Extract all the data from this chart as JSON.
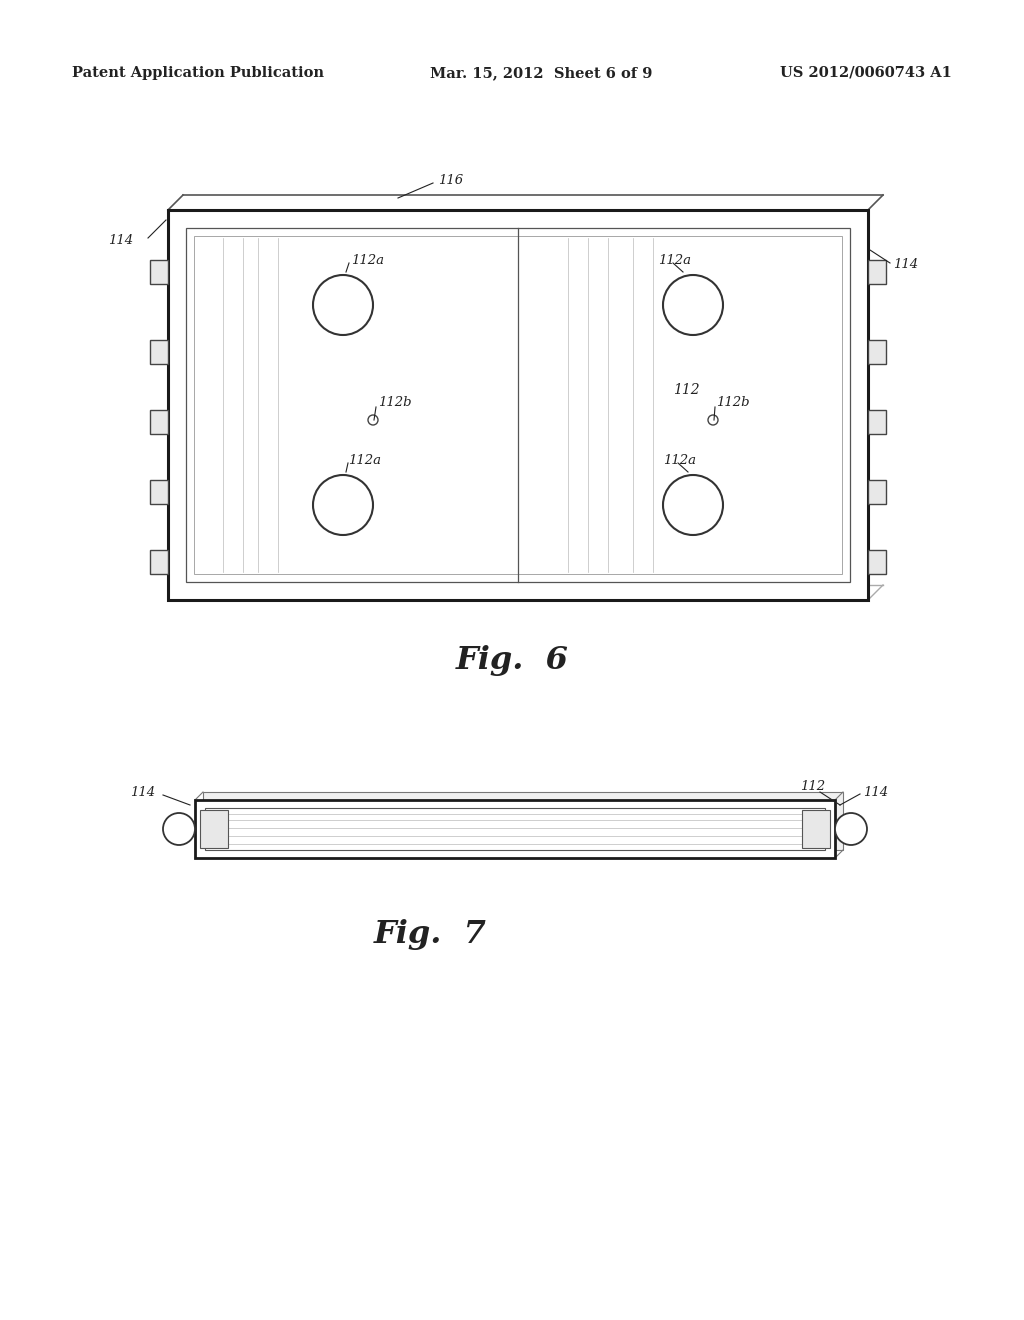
{
  "bg_color": "#ffffff",
  "header_left": "Patent Application Publication",
  "header_mid": "Mar. 15, 2012  Sheet 6 of 9",
  "header_right": "US 2012/0060743 A1",
  "line_color": "#333333",
  "label_color": "#222222",
  "fig6_label": "Fig.  6",
  "fig7_label": "Fig.  7"
}
